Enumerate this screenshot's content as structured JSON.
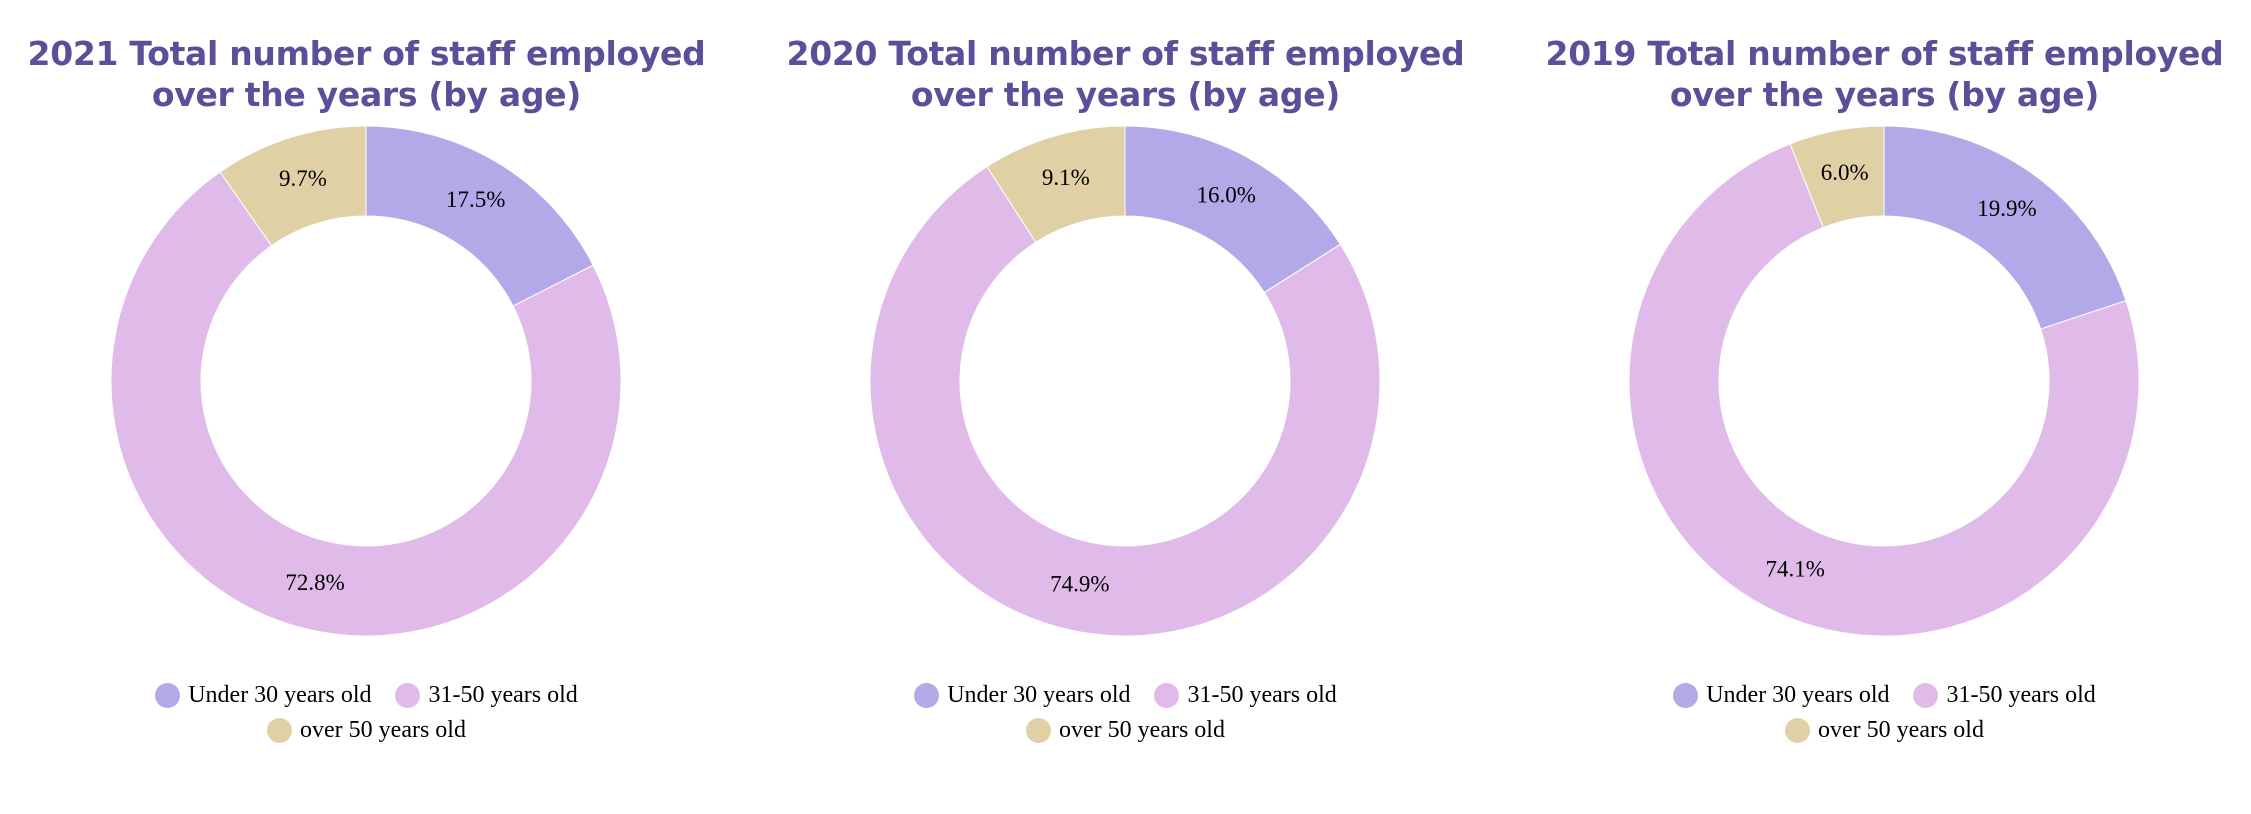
{
  "colors": {
    "title": "#5c4f99",
    "under_30": "#b3a8e8",
    "age_31_50": "#e0bbea",
    "over_50": "#e0d0a5",
    "background": "#ffffff"
  },
  "legend": {
    "items": [
      {
        "label": "Under 30 years old",
        "color": "#b3a8e8"
      },
      {
        "label": "31-50 years old",
        "color": "#e0bbea"
      },
      {
        "label": "over 50 years old",
        "color": "#e0d0a5"
      }
    ]
  },
  "chart_data": [
    {
      "type": "pie",
      "variant": "donut",
      "title_line1": "2021 Total number of staff employed",
      "title_line2": "over the years (by age)",
      "categories": [
        "Under 30 years old",
        "31-50 years old",
        "over 50 years old"
      ],
      "values": [
        17.5,
        72.8,
        9.7
      ],
      "labels": [
        "17.5%",
        "72.8%",
        "9.7%"
      ],
      "legend_position": "bottom"
    },
    {
      "type": "pie",
      "variant": "donut",
      "title_line1": "2020 Total number of staff employed",
      "title_line2": "over the years (by age)",
      "categories": [
        "Under 30 years old",
        "31-50 years old",
        "over 50 years old"
      ],
      "values": [
        16.0,
        74.9,
        9.1
      ],
      "labels": [
        "16.0%",
        "74.9%",
        "9.1%"
      ],
      "legend_position": "bottom"
    },
    {
      "type": "pie",
      "variant": "donut",
      "title_line1": "2019 Total number of staff employed",
      "title_line2": "over the years (by age)",
      "categories": [
        "Under 30 years old",
        "31-50 years old",
        "over 50 years old"
      ],
      "values": [
        19.9,
        74.1,
        6.0
      ],
      "labels": [
        "19.9%",
        "74.1%",
        "6.0%"
      ],
      "legend_position": "bottom"
    }
  ]
}
